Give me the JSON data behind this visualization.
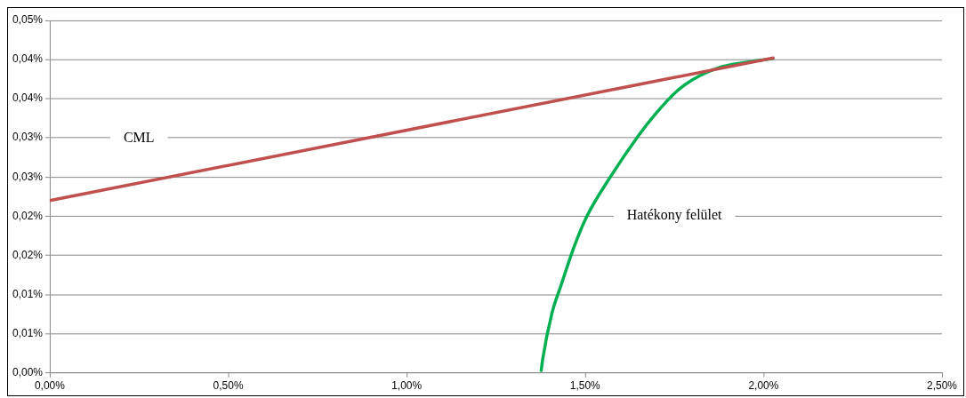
{
  "chart_data": {
    "type": "line",
    "xlim": [
      0,
      2.5
    ],
    "xticks": [
      {
        "value": 0,
        "label": "0,00%"
      },
      {
        "value": 0.5,
        "label": "0,50%"
      },
      {
        "value": 1,
        "label": "1,00%"
      },
      {
        "value": 1.5,
        "label": "1,50%"
      },
      {
        "value": 2,
        "label": "2,00%"
      },
      {
        "value": 2.5,
        "label": "2,50%"
      }
    ],
    "ylim": [
      0,
      0.045
    ],
    "yticks": [
      {
        "value": 0,
        "label": "0,00%"
      },
      {
        "value": 0.005,
        "label": "0,01%"
      },
      {
        "value": 0.01,
        "label": "0,01%"
      },
      {
        "value": 0.015,
        "label": "0,02%"
      },
      {
        "value": 0.02,
        "label": "0,02%"
      },
      {
        "value": 0.025,
        "label": "0,03%"
      },
      {
        "value": 0.03,
        "label": "0,03%"
      },
      {
        "value": 0.035,
        "label": "0,04%"
      },
      {
        "value": 0.04,
        "label": "0,04%"
      },
      {
        "value": 0.045,
        "label": "0,05%"
      }
    ],
    "grid": "y",
    "legend": false,
    "marker": "none",
    "line_style": "solid",
    "series": [
      {
        "name": "CML",
        "color": "#c0504d",
        "x": [
          0,
          2.027
        ],
        "values": [
          0.022,
          0.0402
        ]
      },
      {
        "name": "Hatékony felület",
        "color": "#00b050",
        "x": [
          1.377,
          1.381,
          1.407,
          1.432,
          1.47,
          1.504,
          1.572,
          1.648,
          1.698,
          1.758,
          1.8,
          1.877,
          1.944,
          2.025
        ],
        "values": [
          0.0003,
          0.0017,
          0.0076,
          0.0111,
          0.0162,
          0.0199,
          0.0251,
          0.0302,
          0.0331,
          0.036,
          0.0374,
          0.039,
          0.0396,
          0.0401
        ]
      }
    ]
  }
}
